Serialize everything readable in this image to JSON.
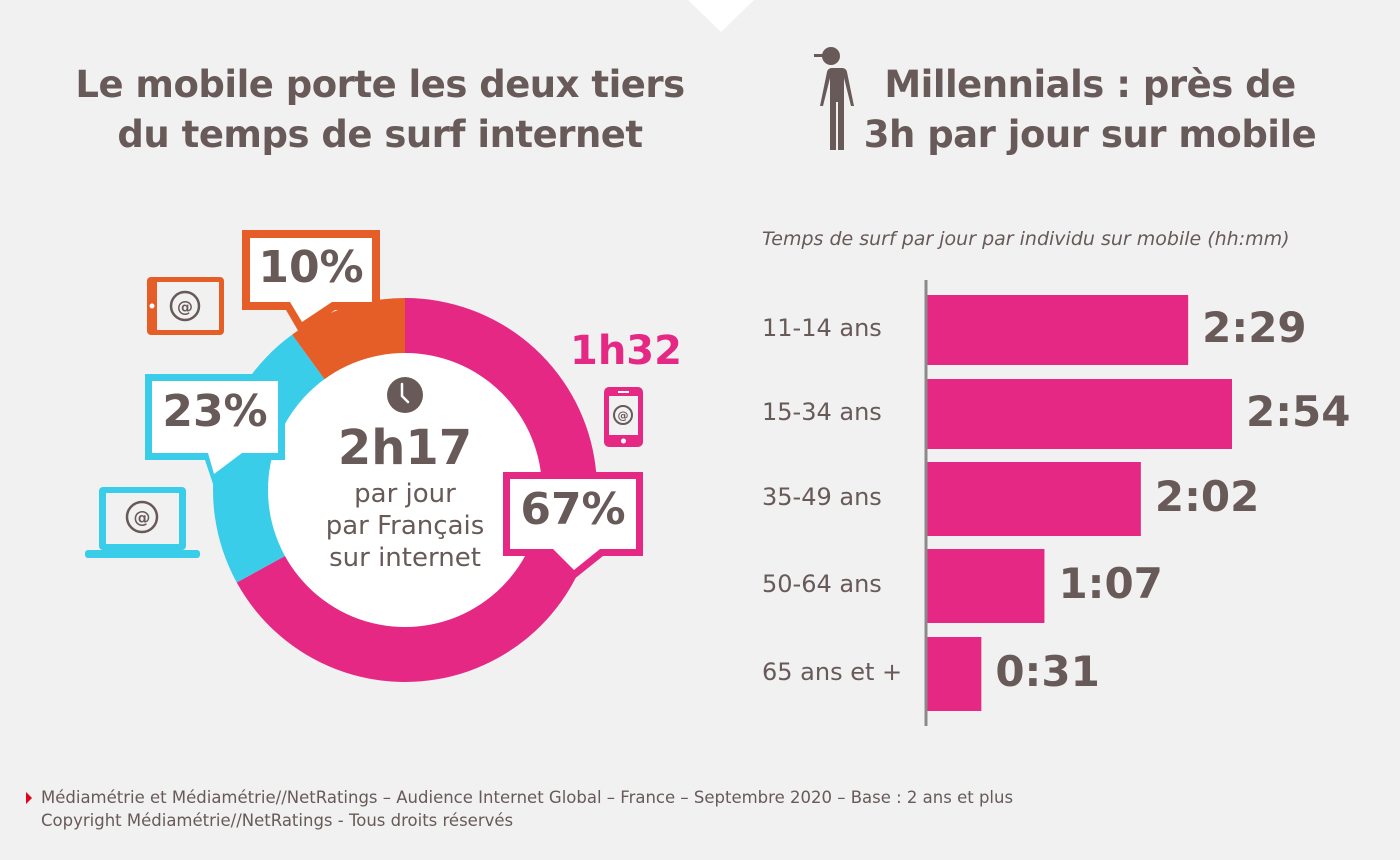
{
  "colors": {
    "background": "#f1f1f1",
    "text": "#675a58",
    "mobile": "#e52884",
    "computer": "#3acde9",
    "tablet": "#e55e28",
    "footer_arrow": "#e2001a"
  },
  "left": {
    "title_line1": "Le mobile porte les deux tiers",
    "title_line2": "du temps de surf internet",
    "center": {
      "icon": "clock-icon",
      "value": "2h17",
      "line1": "par jour",
      "line2": "par Français",
      "line3": "sur internet"
    },
    "mobile_time": "1h32",
    "callouts": {
      "tablet": "10%",
      "computer": "23%",
      "mobile": "67%"
    },
    "device_icons": [
      "tablet-icon",
      "laptop-icon",
      "smartphone-icon"
    ]
  },
  "right": {
    "title_line1": "Millennials : près de",
    "title_line2": "3h par jour sur mobile",
    "icon": "person-icon",
    "subtitle": "Temps de surf par jour par individu sur mobile (hh:mm)"
  },
  "chart_data": [
    {
      "type": "pie",
      "title": "Le mobile porte les deux tiers du temps de surf internet",
      "subtype": "donut",
      "center_label": "2h17 par jour par Français sur internet",
      "slices": [
        {
          "name": "Mobile",
          "value": 67,
          "label": "67%",
          "color": "#e52884"
        },
        {
          "name": "Ordinateur",
          "value": 23,
          "label": "23%",
          "color": "#3acde9"
        },
        {
          "name": "Tablette",
          "value": 10,
          "label": "10%",
          "color": "#e55e28"
        }
      ],
      "annotations": [
        "1h32"
      ]
    },
    {
      "type": "bar",
      "orientation": "horizontal",
      "title": "Temps de surf par jour par individu sur mobile (hh:mm)",
      "categories": [
        "11-14 ans",
        "15-34 ans",
        "35-49 ans",
        "50-64 ans",
        "65 ans et +"
      ],
      "values_minutes": [
        149,
        174,
        122,
        67,
        31
      ],
      "value_labels": [
        "2:29",
        "2:54",
        "2:02",
        "1:07",
        "0:31"
      ],
      "xlabel": "",
      "ylabel": "",
      "xlim_minutes": [
        0,
        174
      ],
      "grid": false,
      "bar_color": "#e52884"
    }
  ],
  "footer": {
    "line1": "Médiamétrie et Médiamétrie//NetRatings – Audience Internet Global – France – Septembre 2020 – Base : 2 ans et plus",
    "line2": "Copyright Médiamétrie//NetRatings - Tous droits réservés"
  }
}
